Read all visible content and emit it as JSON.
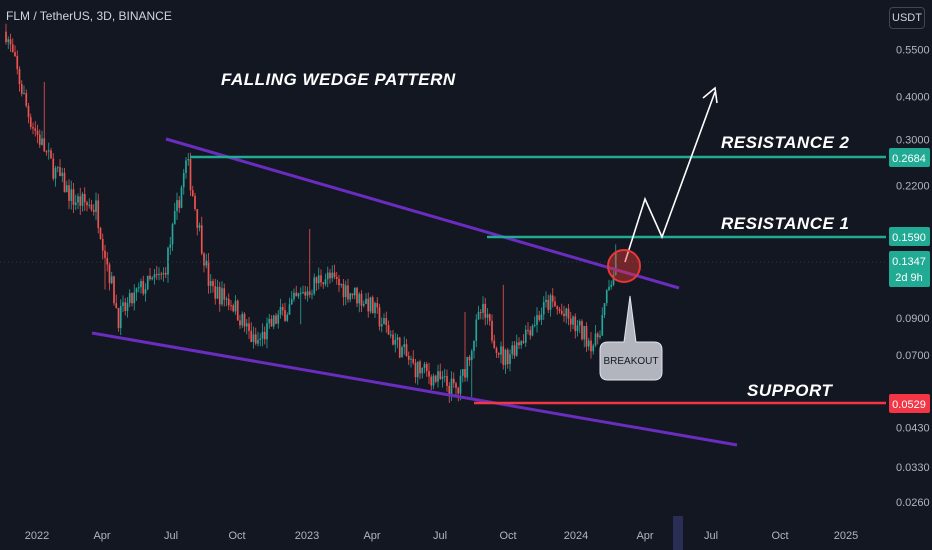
{
  "header": {
    "title": "FLM / TetherUS, 3D, BINANCE"
  },
  "currency_button": "USDT",
  "annotations": {
    "pattern_title": "FALLING WEDGE PATTERN",
    "resistance2": "RESISTANCE 2",
    "resistance1": "RESISTANCE 1",
    "support": "SUPPORT",
    "breakout": "BREAKOUT"
  },
  "price_tags": {
    "resistance2": {
      "value": "0.2684",
      "color": "#22ab94"
    },
    "resistance1": {
      "value": "0.1590",
      "color": "#22ab94"
    },
    "current": {
      "value": "0.1347",
      "countdown": "2d 9h",
      "color": "#22ab94"
    },
    "support": {
      "value": "0.0529",
      "color": "#f23645"
    }
  },
  "colors": {
    "background": "#131722",
    "up": "#26a69a",
    "down": "#ef5350",
    "wedge": "#6a2dbf",
    "resistance": "#22ab94",
    "support": "#f23645",
    "breakout_marker": "#e53935"
  },
  "chart_data": {
    "type": "candlestick",
    "title": "FLM / TetherUS, 3D, BINANCE",
    "y_scale": "log",
    "ylim": [
      0.024,
      0.68
    ],
    "y_ticks": [
      "0.5500",
      "0.4000",
      "0.3000",
      "0.2200",
      "0.0900",
      "0.0700",
      "0.0430",
      "0.0330",
      "0.0260"
    ],
    "x_ticks": [
      "2022",
      "Apr",
      "Jul",
      "Oct",
      "2023",
      "Apr",
      "Jul",
      "Oct",
      "2024",
      "Apr",
      "Jul",
      "Oct",
      "2025"
    ],
    "levels": {
      "resistance_2": 0.2684,
      "resistance_1": 0.159,
      "support": 0.0529,
      "last_price": 0.1347
    },
    "price_path": [
      {
        "date": "2021-12",
        "price": 0.62
      },
      {
        "date": "2022-01",
        "price": 0.35
      },
      {
        "date": "2022-02",
        "price": 0.25
      },
      {
        "date": "2022-03",
        "price": 0.2
      },
      {
        "date": "2022-04",
        "price": 0.19
      },
      {
        "date": "2022-05",
        "price": 0.09
      },
      {
        "date": "2022-06",
        "price": 0.11
      },
      {
        "date": "2022-07",
        "price": 0.12
      },
      {
        "date": "2022-08",
        "price": 0.26
      },
      {
        "date": "2022-09",
        "price": 0.11
      },
      {
        "date": "2022-10",
        "price": 0.1
      },
      {
        "date": "2022-11",
        "price": 0.075
      },
      {
        "date": "2022-12",
        "price": 0.09
      },
      {
        "date": "2023-02",
        "price": 0.12
      },
      {
        "date": "2023-04",
        "price": 0.1
      },
      {
        "date": "2023-06",
        "price": 0.065
      },
      {
        "date": "2023-08",
        "price": 0.055
      },
      {
        "date": "2023-09",
        "price": 0.095
      },
      {
        "date": "2023-10",
        "price": 0.068
      },
      {
        "date": "2023-12",
        "price": 0.1
      },
      {
        "date": "2024-02",
        "price": 0.075
      },
      {
        "date": "2024-03",
        "price": 0.1347
      }
    ],
    "projection": [
      {
        "date": "2024-03",
        "price": 0.1347
      },
      {
        "date": "2024-04",
        "price": 0.2
      },
      {
        "date": "2024-05",
        "price": 0.155
      },
      {
        "date": "2024-07",
        "price": 0.42
      }
    ],
    "wedge_upper": [
      {
        "date": "2022-06",
        "price": 0.3
      },
      {
        "date": "2024-06",
        "price": 0.115
      }
    ],
    "wedge_lower": [
      {
        "date": "2021-12",
        "price": 0.088
      },
      {
        "date": "2024-07",
        "price": 0.04
      }
    ]
  }
}
